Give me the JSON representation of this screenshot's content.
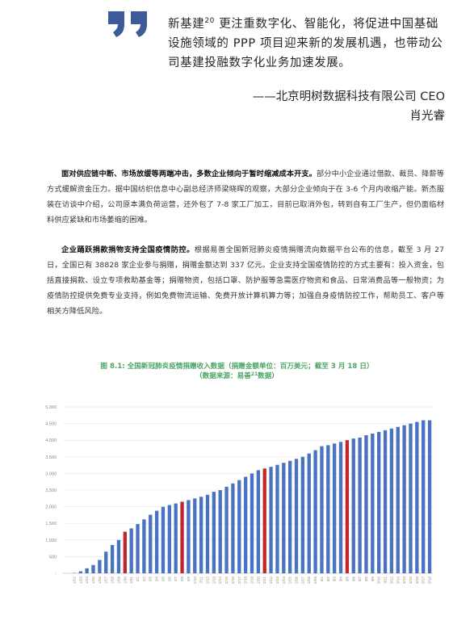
{
  "quote": {
    "text_before": "新基建",
    "footnote": "20",
    "text_after": "更注重数字化、智能化，将促进中国基础设施领域的 PPP 项目迎来新的发展机遇，也带动公司基建投融数字化业务加速发展。",
    "attribution_line1": "——北京明树数据科技有限公司 CEO",
    "attribution_line2": "肖光睿",
    "accent_color": "#3d5a99"
  },
  "paragraphs": [
    {
      "lead": "面对供应链中断、市场放缓等两端冲击，多数企业倾向于暂时缩减成本开支。",
      "body": "部分中小企业通过借款、裁员、降薪等方式缓解资金压力。据中国纺织信息中心副总经济师梁晓晖的观察，大部分企业倾向于在 3-6 个月内收缩产能。新杰服装在访谈中介绍，公司原本满负荷运营，还外包了 7-8 家工厂加工，目前已取消外包，转到自有工厂生产，但仍面临材料供应紧缺和市场萎缩的困难。"
    },
    {
      "lead": "企业踊跃捐款捐物支持全国疫情防控。",
      "body": "根据易善全国新冠肺炎疫情捐赠流向数据平台公布的信息，截至 3 月 27 日，全国已有 38828 家企业参与捐赠，捐赠金额达到 337 亿元。企业支持全国疫情防控的方式主要有：投入资金，包括直接捐款、设立专项救助基金等；捐赠物资，包括口罩、防护服等急需医疗物资和食品、日常消费品等一般物资；为疫情防控提供免费专业支持，例如免费物流运输、免费开放计算机算力等；加强自身疫情防控工作，帮助员工、客户等相关方降低风险。"
    }
  ],
  "chart_title": {
    "line1": "图 8.1: 全国新冠肺炎疫情捐赠收入数据（捐赠金额单位：百万美元；截至 3 月 18 日）",
    "line2_before": "（数据来源：易善",
    "footnote": "21",
    "line2_after": "数据）"
  },
  "chart_data": {
    "type": "bar",
    "title": "",
    "xlabel": "",
    "ylabel": "",
    "ylim": [
      0,
      5000
    ],
    "yticks": [
      "-",
      "500",
      "1,000",
      "1,500",
      "2,000",
      "2,500",
      "3,000",
      "3,500",
      "4,000",
      "4,500",
      "5,000"
    ],
    "grid": true,
    "bar_color": "#4a72c2",
    "highlight_color": "#c0272d",
    "highlight_indices": [
      8,
      17,
      30,
      43
    ],
    "categories": [
      "1/22",
      "1/23",
      "1/24",
      "1/25",
      "1/26",
      "1/27",
      "1/28",
      "1/29",
      "1/30",
      "1/31",
      "2/1",
      "2/2",
      "2/3",
      "2/4",
      "2/5",
      "2/6",
      "2/7",
      "2/8",
      "2/9",
      "2/10",
      "2/11",
      "2/12",
      "2/13",
      "2/14",
      "2/15",
      "2/16",
      "2/17",
      "2/18",
      "2/19",
      "2/20",
      "2/21",
      "2/22",
      "2/23",
      "2/24",
      "2/25",
      "2/26",
      "2/27",
      "2/28",
      "2/29",
      "3/1",
      "3/2",
      "3/3",
      "3/4",
      "3/5",
      "3/6",
      "3/7",
      "3/8",
      "3/9",
      "3/10",
      "3/11",
      "3/12",
      "3/13",
      "3/14",
      "3/15",
      "3/16",
      "3/17",
      "3/18"
    ],
    "values": [
      10,
      60,
      150,
      250,
      400,
      650,
      850,
      1000,
      1250,
      1350,
      1480,
      1620,
      1760,
      1880,
      2000,
      2050,
      2100,
      2150,
      2200,
      2250,
      2300,
      2360,
      2450,
      2500,
      2600,
      2700,
      2800,
      2900,
      3000,
      3100,
      3150,
      3200,
      3260,
      3320,
      3380,
      3440,
      3500,
      3600,
      3700,
      3820,
      3850,
      3900,
      3950,
      4000,
      4050,
      4080,
      4150,
      4200,
      4250,
      4300,
      4350,
      4400,
      4450,
      4500,
      4550,
      4600,
      4600
    ]
  }
}
